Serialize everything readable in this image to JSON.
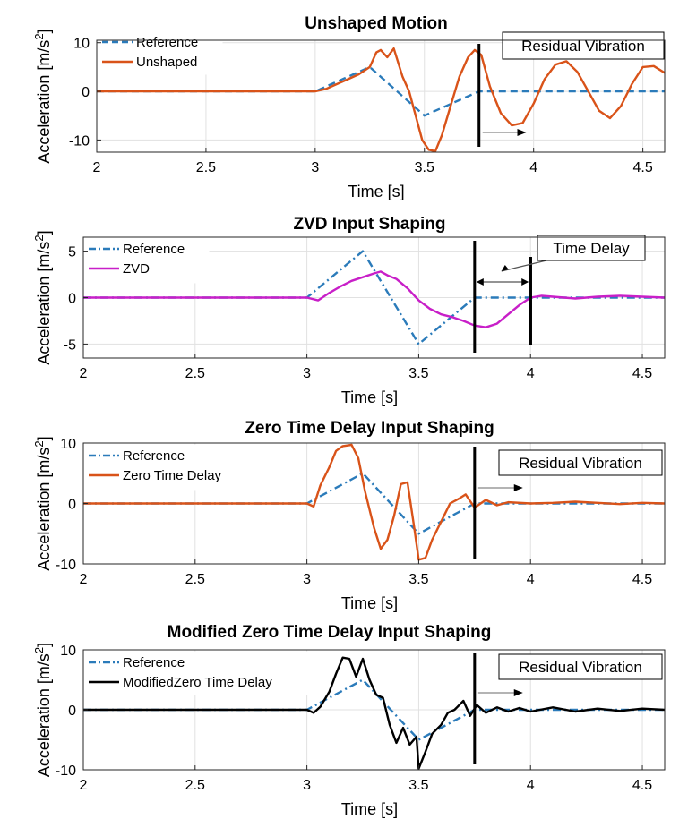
{
  "chart_data": [
    {
      "type": "line",
      "title": "Unshaped Motion",
      "xlabel": "Time [s]",
      "ylabel": "Acceleration [m/s",
      "ylabel_sup": "2",
      "ylabel_close": "]",
      "xlim": [
        2,
        4.6
      ],
      "ylim": [
        -12.5,
        10.5
      ],
      "xticks": [
        2,
        2.5,
        3,
        3.5,
        4,
        4.5
      ],
      "xtick_labels": [
        "2",
        "2.5",
        "3",
        "3.5",
        "4",
        "4.5"
      ],
      "yticks": [
        -10,
        0,
        10
      ],
      "ytick_labels": [
        "-10",
        "0",
        "10"
      ],
      "legend": [
        "Reference",
        "Unshaped"
      ],
      "series": [
        {
          "name": "Reference",
          "color": "#2b7bba",
          "style": "dashed",
          "x": [
            2,
            3,
            3.25,
            3.5,
            3.75,
            4.6
          ],
          "y": [
            0,
            0,
            5,
            -5,
            0,
            0
          ]
        },
        {
          "name": "Unshaped",
          "color": "#d95319",
          "style": "solid",
          "x": [
            2,
            2.5,
            3,
            3.05,
            3.1,
            3.15,
            3.2,
            3.25,
            3.28,
            3.3,
            3.33,
            3.36,
            3.4,
            3.43,
            3.46,
            3.49,
            3.52,
            3.55,
            3.58,
            3.62,
            3.66,
            3.7,
            3.73,
            3.76,
            3.8,
            3.85,
            3.9,
            3.95,
            4.0,
            4.05,
            4.1,
            4.15,
            4.2,
            4.25,
            4.3,
            4.35,
            4.4,
            4.45,
            4.5,
            4.55,
            4.6
          ],
          "y": [
            0,
            0,
            0,
            0.5,
            1.5,
            2.5,
            3.5,
            5,
            8,
            8.5,
            7,
            8.8,
            3,
            0,
            -5,
            -10,
            -12,
            -12.3,
            -9,
            -3,
            3,
            7,
            8.5,
            7.5,
            1,
            -4.5,
            -7,
            -6.5,
            -2.5,
            2.5,
            5.5,
            6.2,
            4,
            0,
            -4,
            -5.5,
            -3,
            1.5,
            5,
            5.2,
            3.8
          ]
        }
      ],
      "annotation": {
        "text": "Residual Vibration",
        "line_x": 3.75,
        "arrow": [
          3.75,
          3.95
        ]
      }
    },
    {
      "type": "line",
      "title": "ZVD Input Shaping",
      "xlabel": "Time [s]",
      "ylabel": "Acceleration [m/s",
      "ylabel_sup": "2",
      "ylabel_close": "]",
      "xlim": [
        2,
        4.6
      ],
      "ylim": [
        -6.5,
        6.5
      ],
      "xticks": [
        2,
        2.5,
        3,
        3.5,
        4,
        4.5
      ],
      "xtick_labels": [
        "2",
        "2.5",
        "3",
        "3.5",
        "4",
        "4.5"
      ],
      "yticks": [
        -5,
        0,
        5
      ],
      "ytick_labels": [
        "-5",
        "0",
        "5"
      ],
      "legend": [
        "Reference",
        "ZVD"
      ],
      "series": [
        {
          "name": "Reference",
          "color": "#2b7bba",
          "style": "dashdot",
          "x": [
            2,
            3,
            3.25,
            3.5,
            3.75,
            4.6
          ],
          "y": [
            0,
            0,
            5,
            -5,
            0,
            0
          ]
        },
        {
          "name": "ZVD",
          "color": "#c81fc8",
          "style": "solid",
          "x": [
            2,
            2.5,
            3,
            3.05,
            3.1,
            3.15,
            3.2,
            3.25,
            3.3,
            3.33,
            3.36,
            3.4,
            3.45,
            3.5,
            3.55,
            3.6,
            3.65,
            3.7,
            3.75,
            3.8,
            3.85,
            3.9,
            3.95,
            4.0,
            4.05,
            4.1,
            4.2,
            4.3,
            4.4,
            4.5,
            4.6
          ],
          "y": [
            0,
            0,
            0,
            -0.3,
            0.5,
            1.2,
            1.8,
            2.2,
            2.6,
            2.8,
            2.4,
            2.0,
            1.0,
            -0.3,
            -1.2,
            -1.8,
            -2.1,
            -2.5,
            -3.0,
            -3.2,
            -2.8,
            -1.8,
            -0.8,
            0,
            0.2,
            0.1,
            -0.1,
            0.1,
            0.2,
            0.1,
            0
          ]
        }
      ],
      "annotation": {
        "text": "Time Delay",
        "line_x": 3.75,
        "line_x2": 4.0,
        "arrow": [
          3.75,
          4.0
        ]
      }
    },
    {
      "type": "line",
      "title": "Zero Time Delay Input Shaping",
      "xlabel": "Time [s]",
      "ylabel": "Acceleration [m/s",
      "ylabel_sup": "2",
      "ylabel_close": "]",
      "xlim": [
        2,
        4.6
      ],
      "ylim": [
        -10,
        10
      ],
      "xticks": [
        2,
        2.5,
        3,
        3.5,
        4,
        4.5
      ],
      "xtick_labels": [
        "2",
        "2.5",
        "3",
        "3.5",
        "4",
        "4.5"
      ],
      "yticks": [
        -10,
        0,
        10
      ],
      "ytick_labels": [
        "-10",
        "0",
        "10"
      ],
      "legend": [
        "Reference",
        "Zero Time Delay"
      ],
      "series": [
        {
          "name": "Reference",
          "color": "#2b7bba",
          "style": "dashdot",
          "x": [
            2,
            3,
            3.25,
            3.5,
            3.75,
            4.6
          ],
          "y": [
            0,
            0,
            5,
            -5,
            0,
            0
          ]
        },
        {
          "name": "Zero Time Delay",
          "color": "#d95319",
          "style": "solid",
          "x": [
            2,
            2.5,
            3,
            3.03,
            3.06,
            3.1,
            3.13,
            3.16,
            3.2,
            3.23,
            3.26,
            3.3,
            3.33,
            3.36,
            3.39,
            3.42,
            3.45,
            3.48,
            3.5,
            3.53,
            3.56,
            3.6,
            3.64,
            3.68,
            3.71,
            3.75,
            3.8,
            3.85,
            3.9,
            4.0,
            4.1,
            4.2,
            4.3,
            4.4,
            4.5,
            4.6
          ],
          "y": [
            0,
            0,
            0,
            -0.5,
            3,
            6,
            8.7,
            9.5,
            9.7,
            7.5,
            2,
            -4,
            -7.5,
            -6,
            -2,
            3.2,
            3.5,
            -4,
            -9.3,
            -9,
            -6,
            -3,
            0,
            0.8,
            1.5,
            -0.7,
            0.6,
            -0.3,
            0.2,
            0,
            0.1,
            0.3,
            0.1,
            -0.1,
            0.1,
            0
          ]
        }
      ],
      "annotation": {
        "text": "Residual Vibration",
        "line_x": 3.75,
        "arrow": [
          3.75,
          3.95
        ]
      }
    },
    {
      "type": "line",
      "title": "Modified Zero Time Delay Input Shaping",
      "xlabel": "Time [s]",
      "ylabel": "Acceleration [m/s",
      "ylabel_sup": "2",
      "ylabel_close": "]",
      "xlim": [
        2,
        4.6
      ],
      "ylim": [
        -10,
        10
      ],
      "xticks": [
        2,
        2.5,
        3,
        3.5,
        4,
        4.5
      ],
      "xtick_labels": [
        "2",
        "2.5",
        "3",
        "3.5",
        "4",
        "4.5"
      ],
      "yticks": [
        -10,
        0,
        10
      ],
      "ytick_labels": [
        "-10",
        "0",
        "10"
      ],
      "legend": [
        "Reference",
        "ModifiedZero Time Delay"
      ],
      "series": [
        {
          "name": "Reference",
          "color": "#2b7bba",
          "style": "dashdot",
          "x": [
            2,
            3,
            3.25,
            3.5,
            3.75,
            4.6
          ],
          "y": [
            0,
            0,
            5,
            -5,
            0,
            0
          ]
        },
        {
          "name": "ModifiedZero Time Delay",
          "color": "#000000",
          "style": "solid",
          "x": [
            2,
            2.5,
            3,
            3.03,
            3.06,
            3.1,
            3.13,
            3.16,
            3.19,
            3.22,
            3.25,
            3.28,
            3.31,
            3.34,
            3.37,
            3.4,
            3.43,
            3.46,
            3.49,
            3.5,
            3.53,
            3.56,
            3.6,
            3.63,
            3.66,
            3.7,
            3.73,
            3.76,
            3.8,
            3.85,
            3.9,
            3.95,
            4.0,
            4.1,
            4.2,
            4.3,
            4.4,
            4.5,
            4.6
          ],
          "y": [
            0,
            0,
            0,
            -0.5,
            0.5,
            3,
            6,
            8.7,
            8.5,
            5.5,
            8.5,
            5,
            2.5,
            2,
            -2.5,
            -5.5,
            -3,
            -5.8,
            -4.5,
            -9.8,
            -7,
            -4,
            -2.5,
            -0.5,
            0,
            1.5,
            -1,
            0.8,
            -0.5,
            0.4,
            -0.3,
            0.3,
            -0.3,
            0.4,
            -0.3,
            0.2,
            -0.2,
            0.2,
            0
          ]
        }
      ],
      "annotation": {
        "text": "Residual Vibration",
        "line_x": 3.75,
        "arrow": [
          3.75,
          3.95
        ]
      }
    }
  ]
}
